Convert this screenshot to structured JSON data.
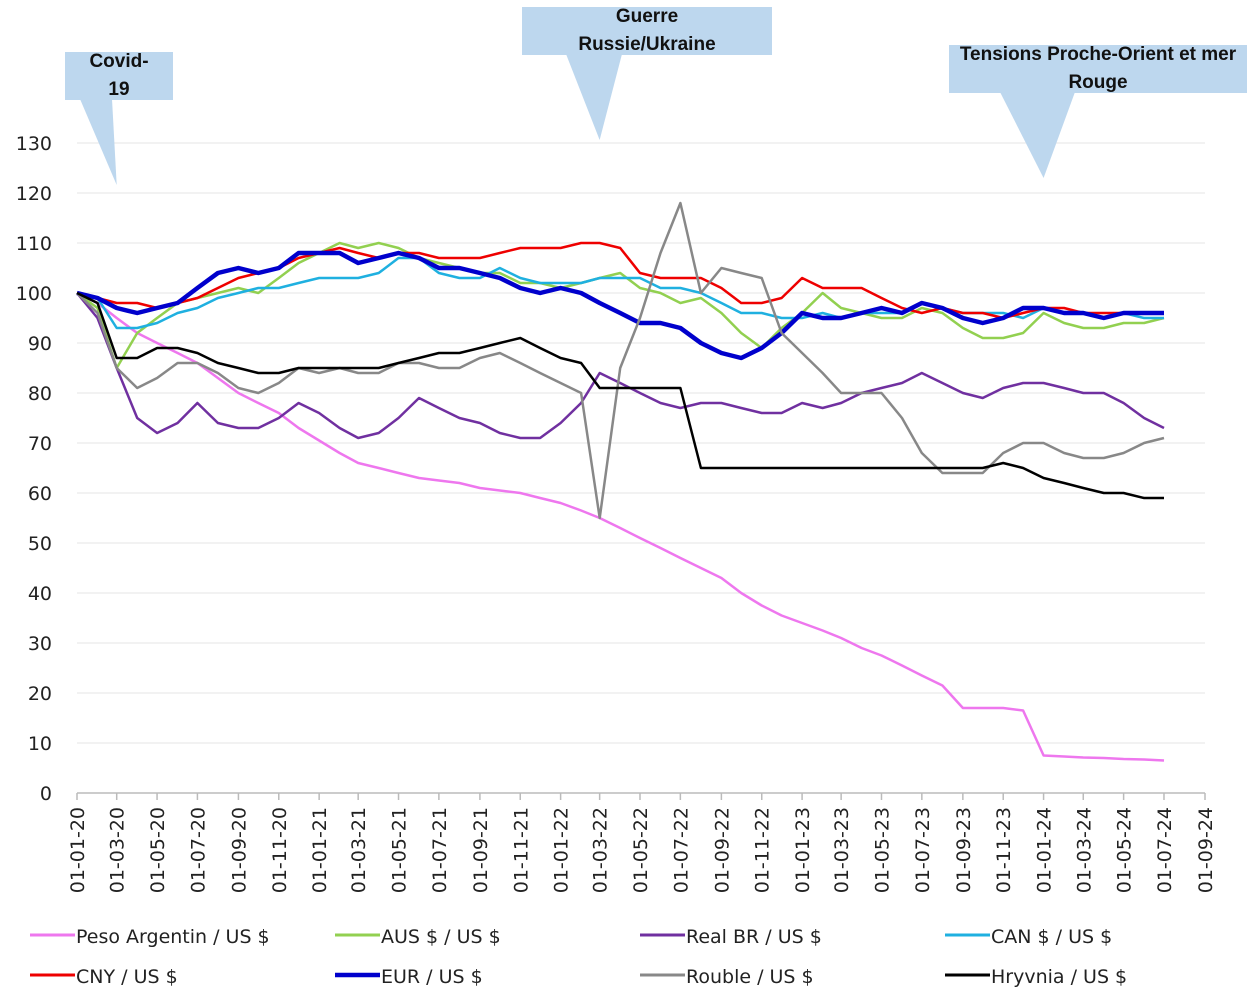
{
  "chart_data": {
    "type": "line",
    "x": [
      "01-01-20",
      "01-02-20",
      "01-03-20",
      "01-04-20",
      "01-05-20",
      "01-06-20",
      "01-07-20",
      "01-08-20",
      "01-09-20",
      "01-10-20",
      "01-11-20",
      "01-12-20",
      "01-01-21",
      "01-02-21",
      "01-03-21",
      "01-04-21",
      "01-05-21",
      "01-06-21",
      "01-07-21",
      "01-08-21",
      "01-09-21",
      "01-10-21",
      "01-11-21",
      "01-12-21",
      "01-01-22",
      "01-02-22",
      "01-03-22",
      "01-04-22",
      "01-05-22",
      "01-06-22",
      "01-07-22",
      "01-08-22",
      "01-09-22",
      "01-10-22",
      "01-11-22",
      "01-12-22",
      "01-01-23",
      "01-02-23",
      "01-03-23",
      "01-04-23",
      "01-05-23",
      "01-06-23",
      "01-07-23",
      "01-08-23",
      "01-09-23",
      "01-10-23",
      "01-11-23",
      "01-12-23",
      "01-01-24",
      "01-02-24",
      "01-03-24",
      "01-04-24",
      "01-05-24",
      "01-06-24",
      "01-07-24"
    ],
    "series": [
      {
        "name": "Peso Argentin / US $",
        "color": "#ee77ee",
        "values": [
          100,
          98,
          95,
          92,
          90,
          88,
          86,
          83,
          80,
          78,
          76,
          73,
          70.5,
          68,
          66,
          65,
          64,
          63,
          62.5,
          62,
          61,
          60.5,
          60,
          59,
          58,
          56.5,
          55,
          53,
          51,
          49,
          47,
          45,
          43,
          40,
          37.5,
          35.5,
          34,
          32.5,
          31,
          29,
          27.5,
          25.5,
          23.5,
          21.5,
          17,
          17,
          17,
          16.5,
          7.5,
          7.3,
          7.1,
          7,
          6.8,
          6.7,
          6.5
        ]
      },
      {
        "name": "AUS $ / US $",
        "color": "#92d050",
        "values": [
          100,
          97,
          85,
          92,
          95,
          98,
          99,
          100,
          101,
          100,
          103,
          106,
          108,
          110,
          109,
          110,
          109,
          107,
          106,
          105,
          104,
          104,
          102,
          102,
          101,
          102,
          103,
          104,
          101,
          100,
          98,
          99,
          96,
          92,
          89,
          93,
          96,
          100,
          97,
          96,
          95,
          95,
          97,
          96,
          93,
          91,
          91,
          92,
          96,
          94,
          93,
          93,
          94,
          94,
          95
        ]
      },
      {
        "name": "Real BR / US $",
        "color": "#7030a0",
        "values": [
          100,
          95,
          85,
          75,
          72,
          74,
          78,
          74,
          73,
          73,
          75,
          78,
          76,
          73,
          71,
          72,
          75,
          79,
          77,
          75,
          74,
          72,
          71,
          71,
          74,
          78,
          84,
          82,
          80,
          78,
          77,
          78,
          78,
          77,
          76,
          76,
          78,
          77,
          78,
          80,
          81,
          82,
          84,
          82,
          80,
          79,
          81,
          82,
          82,
          81,
          80,
          80,
          78,
          75,
          73
        ]
      },
      {
        "name": "CAN $ / US $",
        "color": "#1fb0e0",
        "values": [
          100,
          99,
          93,
          93,
          94,
          96,
          97,
          99,
          100,
          101,
          101,
          102,
          103,
          103,
          103,
          104,
          107,
          107,
          104,
          103,
          103,
          105,
          103,
          102,
          102,
          102,
          103,
          103,
          103,
          101,
          101,
          100,
          98,
          96,
          96,
          95,
          95,
          96,
          95,
          96,
          96,
          96,
          98,
          97,
          96,
          96,
          96,
          95,
          97,
          96,
          96,
          95,
          96,
          95,
          95
        ]
      },
      {
        "name": "CNY / US $",
        "color": "#ee0000",
        "values": [
          100,
          99,
          98,
          98,
          97,
          98,
          99,
          101,
          103,
          104,
          105,
          107,
          108,
          109,
          108,
          107,
          108,
          108,
          107,
          107,
          107,
          108,
          109,
          109,
          109,
          110,
          110,
          109,
          104,
          103,
          103,
          103,
          101,
          98,
          98,
          99,
          103,
          101,
          101,
          101,
          99,
          97,
          96,
          97,
          96,
          96,
          95,
          96,
          97,
          97,
          96,
          96,
          96,
          96,
          96
        ]
      },
      {
        "name": "EUR / US $",
        "color": "#0000cc",
        "values": [
          100,
          99,
          97,
          96,
          97,
          98,
          101,
          104,
          105,
          104,
          105,
          108,
          108,
          108,
          106,
          107,
          108,
          107,
          105,
          105,
          104,
          103,
          101,
          100,
          101,
          100,
          98,
          96,
          94,
          94,
          93,
          90,
          88,
          87,
          89,
          92,
          96,
          95,
          95,
          96,
          97,
          96,
          98,
          97,
          95,
          94,
          95,
          97,
          97,
          96,
          96,
          95,
          96,
          96,
          96
        ]
      },
      {
        "name": "Rouble / US $",
        "color": "#888888",
        "values": [
          100,
          96,
          85,
          81,
          83,
          86,
          86,
          84,
          81,
          80,
          82,
          85,
          84,
          85,
          84,
          84,
          86,
          86,
          85,
          85,
          87,
          88,
          86,
          84,
          82,
          80,
          55,
          85,
          95,
          108,
          118,
          100,
          105,
          104,
          103,
          92,
          88,
          84,
          80,
          80,
          80,
          75,
          68,
          64,
          64,
          64,
          68,
          70,
          70,
          68,
          67,
          67,
          68,
          70,
          71
        ]
      },
      {
        "name": "Hryvnia / US $",
        "color": "#000000",
        "values": [
          100,
          98,
          87,
          87,
          89,
          89,
          88,
          86,
          85,
          84,
          84,
          85,
          85,
          85,
          85,
          85,
          86,
          87,
          88,
          88,
          89,
          90,
          91,
          89,
          87,
          86,
          81,
          81,
          81,
          81,
          81,
          65,
          65,
          65,
          65,
          65,
          65,
          65,
          65,
          65,
          65,
          65,
          65,
          65,
          65,
          65,
          66,
          65,
          63,
          62,
          61,
          60,
          60,
          59,
          59
        ]
      }
    ],
    "xlim": [
      "01-01-20",
      "01-09-24"
    ],
    "xticks": [
      "01-01-20",
      "01-03-20",
      "01-05-20",
      "01-07-20",
      "01-09-20",
      "01-11-20",
      "01-01-21",
      "01-03-21",
      "01-05-21",
      "01-07-21",
      "01-09-21",
      "01-11-21",
      "01-01-22",
      "01-03-22",
      "01-05-22",
      "01-07-22",
      "01-09-22",
      "01-11-22",
      "01-01-23",
      "01-03-23",
      "01-05-23",
      "01-07-23",
      "01-09-23",
      "01-11-23",
      "01-01-24",
      "01-03-24",
      "01-05-24",
      "01-07-24",
      "01-09-24"
    ],
    "ylim": [
      0,
      130
    ],
    "yticks": [
      0,
      10,
      20,
      30,
      40,
      50,
      60,
      70,
      80,
      90,
      100,
      110,
      120,
      130
    ],
    "grid": true,
    "legend": "bottom",
    "annotations": [
      {
        "text": "Covid-19",
        "x": "01-03-20"
      },
      {
        "text": "Guerre Russie/Ukraine",
        "x": "01-03-22"
      },
      {
        "text": "Tensions Proche-Orient et mer Rouge",
        "x": "01-01-24"
      }
    ]
  }
}
